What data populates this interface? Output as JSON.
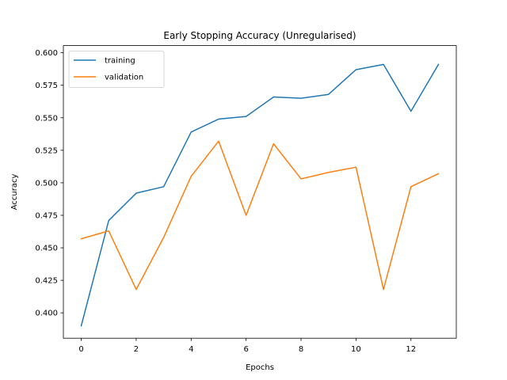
{
  "chart_data": {
    "type": "line",
    "title": "Early Stopping Accuracy (Unregularised)",
    "xlabel": "Epochs",
    "ylabel": "Accuracy",
    "x": [
      0,
      1,
      2,
      3,
      4,
      5,
      6,
      7,
      8,
      9,
      10,
      11,
      12,
      13
    ],
    "xlim": [
      -0.65,
      13.65
    ],
    "ylim": [
      0.3805,
      0.6055
    ],
    "xticks": [
      0,
      2,
      4,
      6,
      8,
      10,
      12
    ],
    "yticks": [
      0.4,
      0.425,
      0.45,
      0.475,
      0.5,
      0.525,
      0.55,
      0.575,
      0.6
    ],
    "xtick_labels": [
      "0",
      "2",
      "4",
      "6",
      "8",
      "10",
      "12"
    ],
    "ytick_labels": [
      "0.400",
      "0.425",
      "0.450",
      "0.475",
      "0.500",
      "0.525",
      "0.550",
      "0.575",
      "0.600"
    ],
    "grid": false,
    "legend_position": "upper left",
    "series": [
      {
        "name": "training",
        "color": "#1f77b4",
        "values": [
          0.39,
          0.471,
          0.492,
          0.497,
          0.539,
          0.549,
          0.551,
          0.566,
          0.565,
          0.568,
          0.587,
          0.591,
          0.555,
          0.591
        ]
      },
      {
        "name": "validation",
        "color": "#ff7f0e",
        "values": [
          0.457,
          0.463,
          0.418,
          0.458,
          0.505,
          0.532,
          0.475,
          0.53,
          0.503,
          0.508,
          0.512,
          0.418,
          0.497,
          0.507
        ]
      }
    ]
  }
}
